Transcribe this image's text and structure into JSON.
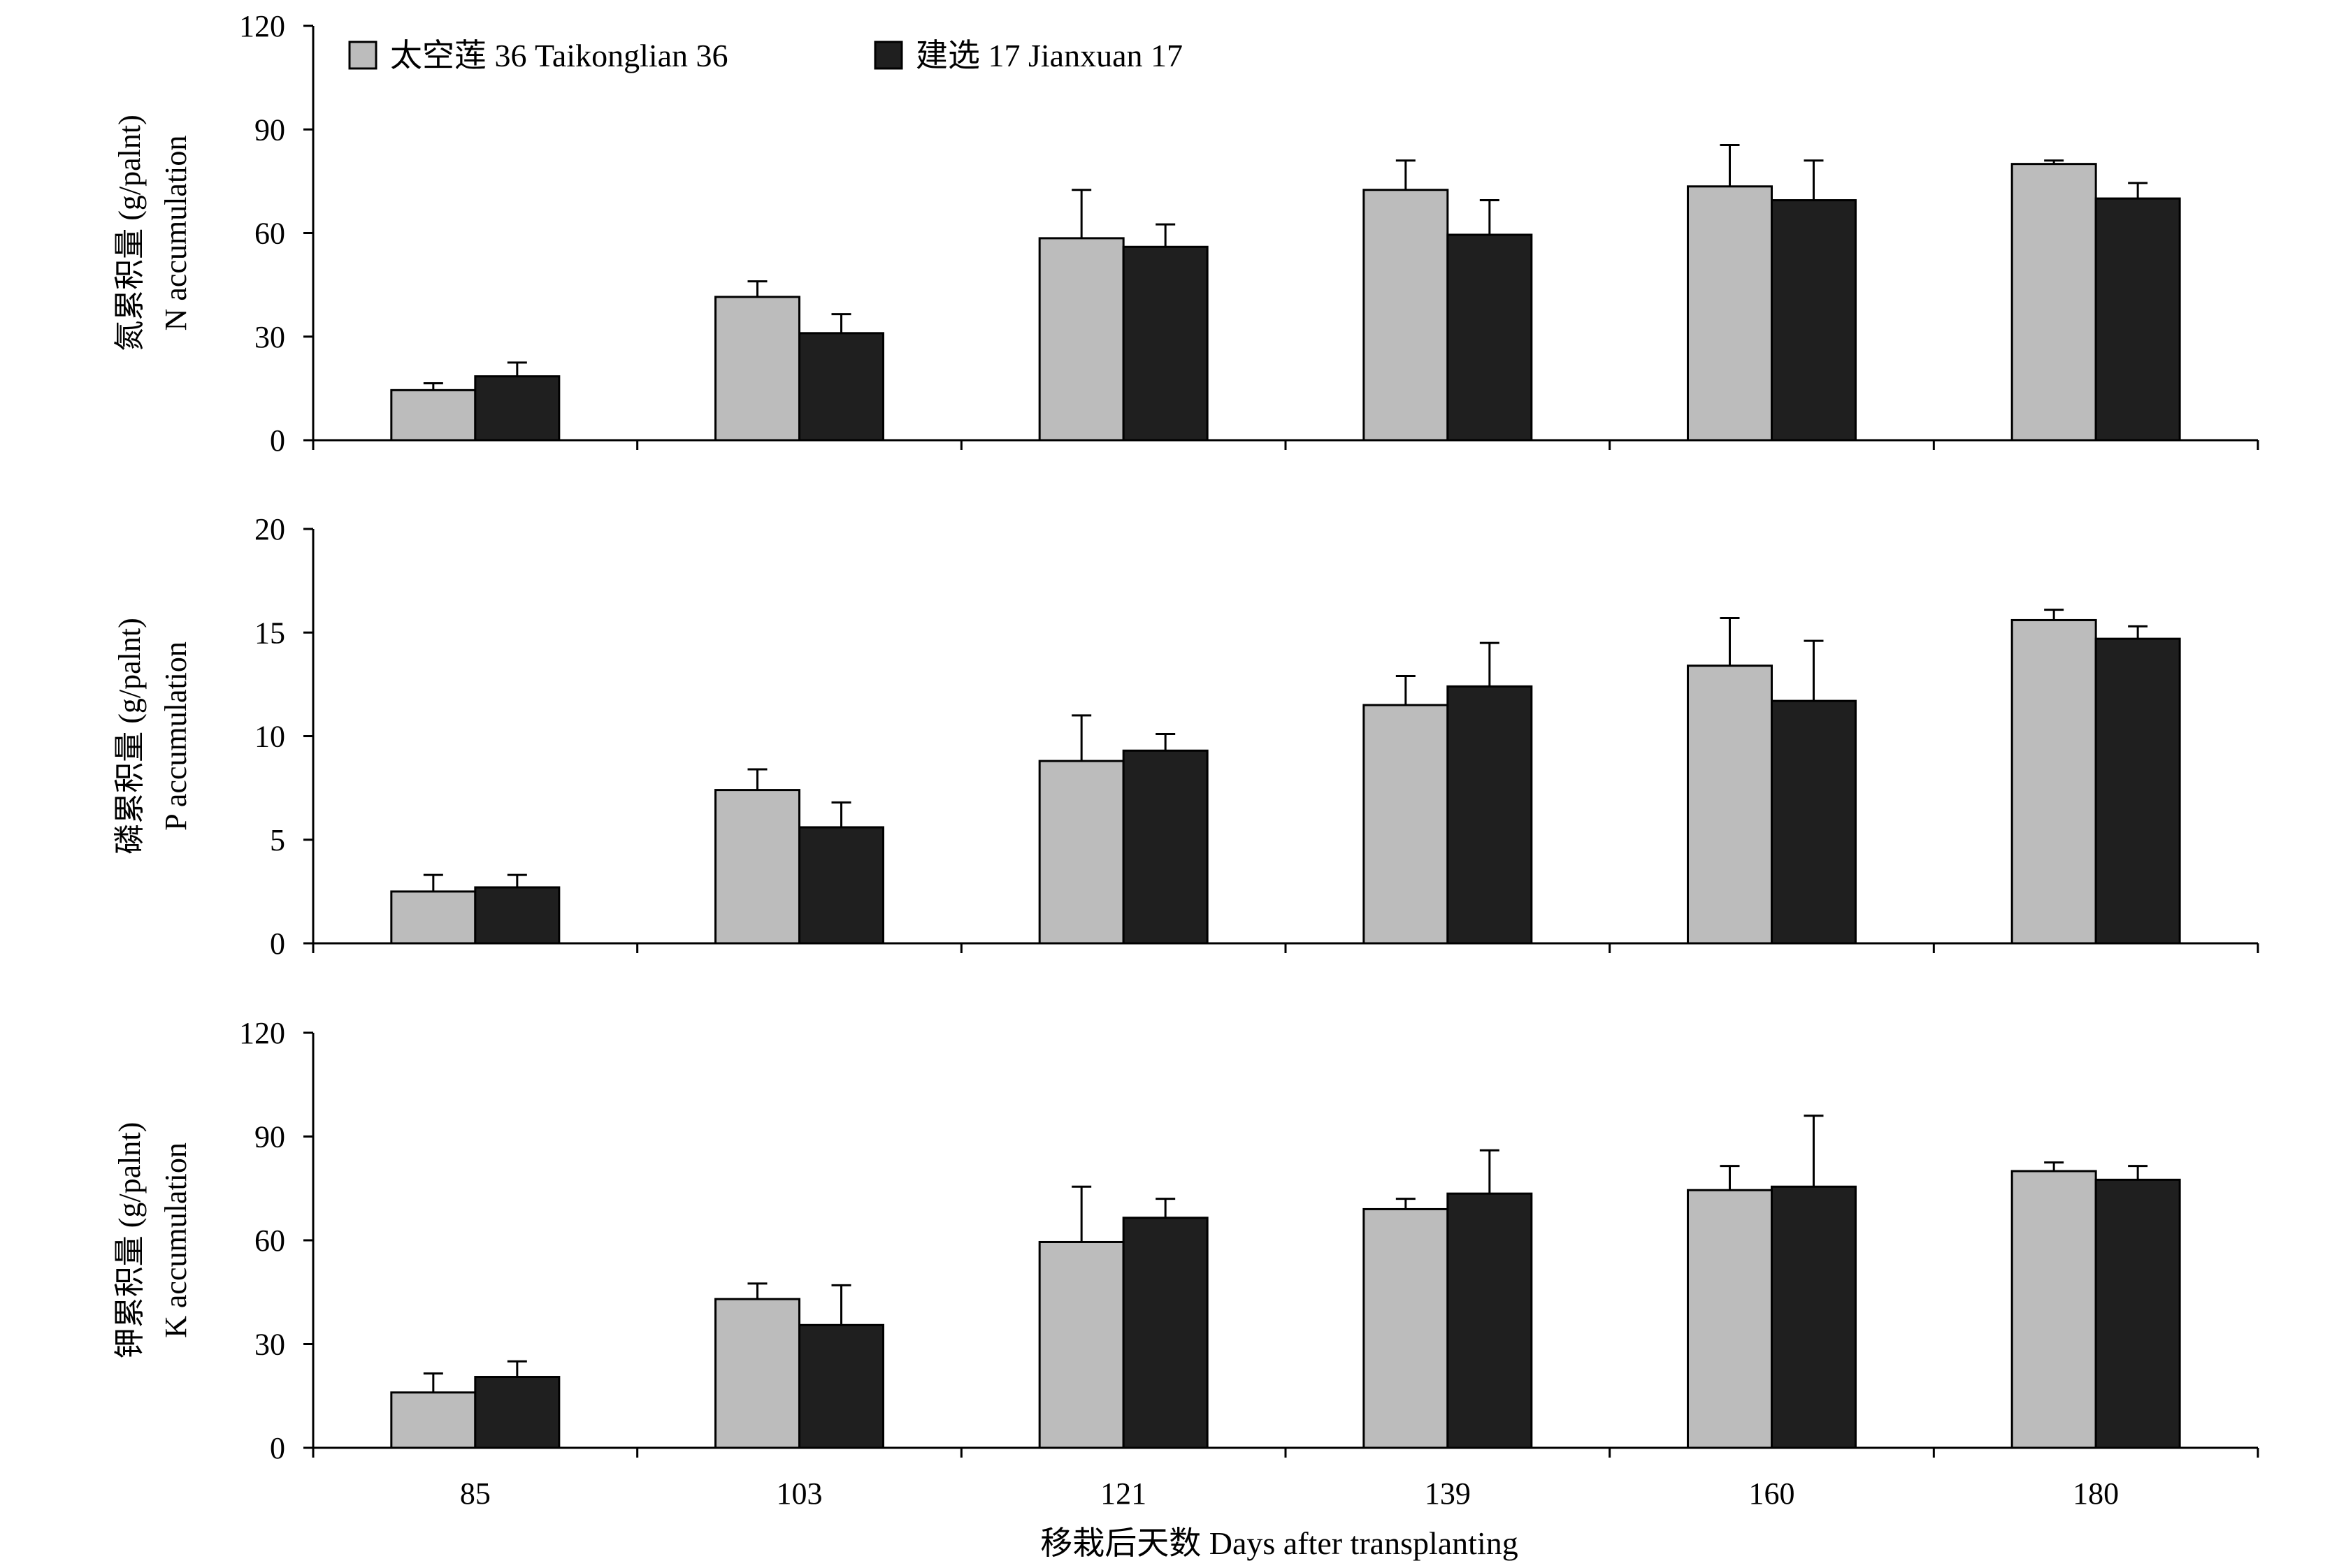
{
  "chart_data": [
    {
      "type": "bar",
      "ylabel_lines": [
        "氮累积量 (g/palnt)",
        "N accumulation"
      ],
      "ylim": [
        0,
        120
      ],
      "yticks": [
        0,
        30,
        60,
        90,
        120
      ],
      "categories": [
        "85",
        "103",
        "121",
        "139",
        "160",
        "180"
      ],
      "series": [
        {
          "name": "太空莲 36 Taikonglian 36",
          "values": [
            14.5,
            41.5,
            58.5,
            72.5,
            73.5,
            80.0
          ],
          "errors": [
            2.0,
            4.5,
            14.0,
            8.5,
            12.0,
            1.0
          ]
        },
        {
          "name": "建选 17 Jianxuan 17",
          "values": [
            18.5,
            31.0,
            56.0,
            59.5,
            69.5,
            70.0
          ],
          "errors": [
            4.0,
            5.5,
            6.5,
            10.0,
            11.5,
            4.5
          ]
        }
      ],
      "grid": false,
      "legend": "top-left"
    },
    {
      "type": "bar",
      "ylabel_lines": [
        "磷累积量 (g/palnt)",
        "P accumulation"
      ],
      "ylim": [
        0,
        20
      ],
      "yticks": [
        0,
        5,
        10,
        15,
        20
      ],
      "categories": [
        "85",
        "103",
        "121",
        "139",
        "160",
        "180"
      ],
      "series": [
        {
          "name": "太空莲 36 Taikonglian 36",
          "values": [
            2.5,
            7.4,
            8.8,
            11.5,
            13.4,
            15.6
          ],
          "errors": [
            0.8,
            1.0,
            2.2,
            1.4,
            2.3,
            0.5
          ]
        },
        {
          "name": "建选 17 Jianxuan 17",
          "values": [
            2.7,
            5.6,
            9.3,
            12.4,
            11.7,
            14.7
          ],
          "errors": [
            0.6,
            1.2,
            0.8,
            2.1,
            2.9,
            0.6
          ]
        }
      ],
      "grid": false
    },
    {
      "type": "bar",
      "ylabel_lines": [
        "钾累积量 (g/palnt)",
        "K accumulation"
      ],
      "ylim": [
        0,
        120
      ],
      "yticks": [
        0,
        30,
        60,
        90,
        120
      ],
      "categories": [
        "85",
        "103",
        "121",
        "139",
        "160",
        "180"
      ],
      "series": [
        {
          "name": "太空莲 36 Taikonglian 36",
          "values": [
            16.0,
            43.0,
            59.5,
            69.0,
            74.5,
            80.0
          ],
          "errors": [
            5.5,
            4.5,
            16.0,
            3.0,
            7.0,
            2.5
          ]
        },
        {
          "name": "建选 17 Jianxuan 17",
          "values": [
            20.5,
            35.5,
            66.5,
            73.5,
            75.5,
            77.5
          ],
          "errors": [
            4.5,
            11.5,
            5.5,
            12.5,
            20.5,
            4.0
          ]
        }
      ],
      "grid": false,
      "xlabel": "移栽后天数 Days after transplanting"
    }
  ],
  "legend": {
    "items": [
      {
        "label": "太空莲 36 Taikonglian 36",
        "color": "#bcbcbc"
      },
      {
        "label": "建选 17 Jianxuan 17",
        "color": "#1f1f1f"
      }
    ]
  },
  "colors": {
    "series1": "#bcbcbc",
    "series2": "#1f1f1f",
    "axis": "#000000"
  }
}
